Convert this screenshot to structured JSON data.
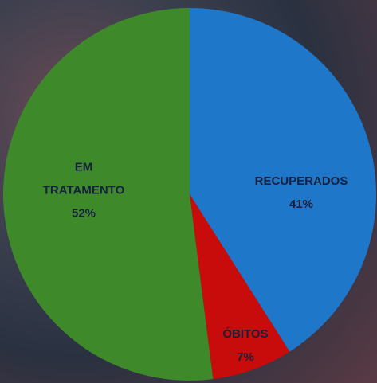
{
  "chart_data": {
    "type": "pie",
    "categories": [
      "RECUPERADOS",
      "ÓBITOS",
      "EM TRATAMENTO"
    ],
    "values": [
      41,
      7,
      52
    ],
    "value_labels": [
      "41%",
      "7%",
      "52%"
    ],
    "colors": [
      "#1f77c9",
      "#c80b0b",
      "#3e8a2b"
    ]
  }
}
